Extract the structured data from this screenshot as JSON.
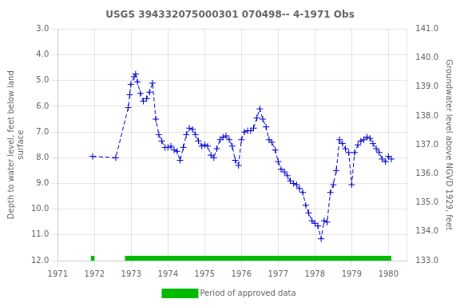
{
  "chart_data": {
    "type": "line",
    "title": "USGS 394332075000301 070498-- 4-1971 Obs",
    "y_label": "Depth to water level, feet below land\nsurface",
    "y2_label": "Groundwater level above NGVD 1929, feet",
    "x": [
      1971.95,
      1972.58,
      1972.92,
      1972.96,
      1972.99,
      1973.08,
      1973.12,
      1973.17,
      1973.25,
      1973.33,
      1973.42,
      1973.5,
      1973.58,
      1973.67,
      1973.75,
      1973.83,
      1973.92,
      1974.0,
      1974.08,
      1974.17,
      1974.25,
      1974.33,
      1974.42,
      1974.5,
      1974.58,
      1974.67,
      1974.75,
      1974.83,
      1974.92,
      1975.0,
      1975.08,
      1975.17,
      1975.25,
      1975.33,
      1975.42,
      1975.5,
      1975.58,
      1975.67,
      1975.75,
      1975.83,
      1975.92,
      1976.0,
      1976.08,
      1976.17,
      1976.25,
      1976.33,
      1976.42,
      1976.5,
      1976.58,
      1976.67,
      1976.75,
      1976.83,
      1976.92,
      1977.0,
      1977.08,
      1977.17,
      1977.25,
      1977.33,
      1977.42,
      1977.5,
      1977.58,
      1977.67,
      1977.75,
      1977.83,
      1977.92,
      1978.0,
      1978.08,
      1978.17,
      1978.25,
      1978.33,
      1978.42,
      1978.5,
      1978.58,
      1978.67,
      1978.75,
      1978.83,
      1978.92,
      1979.0,
      1979.08,
      1979.17,
      1979.25,
      1979.33,
      1979.42,
      1979.5,
      1979.58,
      1979.67,
      1979.75,
      1979.83,
      1979.92,
      1980.0,
      1980.08
    ],
    "series": [
      {
        "color": "#0000CC",
        "marker": "plus",
        "line_style": "dashed",
        "values": [
          7.95,
          8.0,
          6.05,
          5.55,
          5.15,
          4.85,
          4.75,
          5.05,
          5.5,
          5.8,
          5.7,
          5.45,
          5.1,
          6.5,
          7.1,
          7.35,
          7.6,
          7.6,
          7.55,
          7.7,
          7.75,
          8.1,
          7.6,
          7.1,
          6.85,
          6.9,
          7.1,
          7.35,
          7.55,
          7.5,
          7.55,
          7.9,
          8.0,
          7.65,
          7.3,
          7.2,
          7.15,
          7.3,
          7.55,
          8.1,
          8.3,
          7.3,
          7.0,
          6.95,
          6.95,
          6.85,
          6.45,
          6.1,
          6.5,
          6.8,
          7.3,
          7.4,
          7.7,
          8.15,
          8.45,
          8.55,
          8.7,
          8.9,
          9.0,
          9.05,
          9.2,
          9.35,
          9.85,
          10.15,
          10.45,
          10.55,
          10.65,
          11.15,
          10.45,
          10.5,
          9.35,
          9.05,
          8.5,
          7.3,
          7.45,
          7.65,
          7.8,
          9.05,
          7.8,
          7.5,
          7.35,
          7.3,
          7.2,
          7.25,
          7.45,
          7.65,
          7.8,
          8.05,
          8.15,
          7.95,
          8.05
        ]
      },
      {
        "name": "Period of approved data",
        "type": "span",
        "color": "#00bb00",
        "x_ranges": [
          [
            1971.9,
            1972.0
          ],
          [
            1972.83,
            1980.08
          ]
        ]
      }
    ],
    "xlim": [
      1971.0,
      1980.5
    ],
    "xticks": [
      1971,
      1972,
      1973,
      1974,
      1975,
      1976,
      1977,
      1978,
      1979,
      1980
    ],
    "ylim": [
      12.0,
      3.0
    ],
    "yticks": [
      {
        "value": 3.0,
        "label": "3.0"
      },
      {
        "value": 4.0,
        "label": "4.0"
      },
      {
        "value": 5.0,
        "label": "5.0"
      },
      {
        "value": 6.0,
        "label": "6.0"
      },
      {
        "value": 7.0,
        "label": "7.0"
      },
      {
        "value": 8.0,
        "label": "8.0"
      },
      {
        "value": 9.0,
        "label": "9.0"
      },
      {
        "value": 10.0,
        "label": "10.0"
      },
      {
        "value": 11.0,
        "label": "11.0"
      },
      {
        "value": 12.0,
        "label": "12.0"
      }
    ],
    "y2lim": [
      133.0,
      141.0
    ],
    "y2ticks": [
      {
        "value": 141.0,
        "label": "141.0"
      },
      {
        "value": 140.0,
        "label": "140.0"
      },
      {
        "value": 139.0,
        "label": "139.0"
      },
      {
        "value": 138.0,
        "label": "138.0"
      },
      {
        "value": 137.0,
        "label": "137.0"
      },
      {
        "value": 136.0,
        "label": "136.0"
      },
      {
        "value": 135.0,
        "label": "135.0"
      },
      {
        "value": 134.0,
        "label": "134.0"
      },
      {
        "value": 133.0,
        "label": "133.0"
      }
    ],
    "grid": true,
    "legend": "bottom"
  }
}
